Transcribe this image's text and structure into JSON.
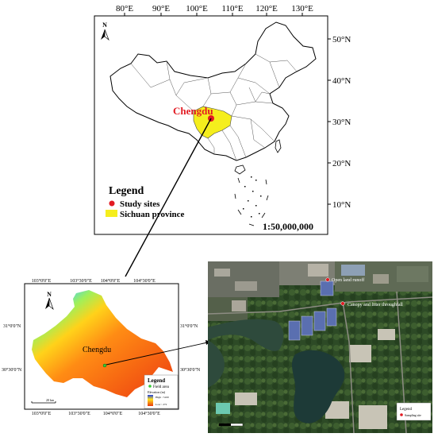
{
  "china_map": {
    "top_ticks": [
      "80°E",
      "90°E",
      "100°E",
      "110°E",
      "120°E",
      "130°E"
    ],
    "right_ticks": [
      "50°N",
      "40°N",
      "30°N",
      "20°N",
      "10°N"
    ],
    "north_label": "N",
    "city_label": "Chengdu",
    "legend": {
      "title": "Legend",
      "items": [
        {
          "label": "Study sites",
          "color": "#e21b23"
        },
        {
          "label": "Sichuan province",
          "color": "#f5ee1d"
        }
      ]
    },
    "scale": "1:50,000,000"
  },
  "chengdu_map": {
    "top_ticks": [
      "103°0'0\"E",
      "103°30'0\"E",
      "104°0'0\"E",
      "104°30'0\"E"
    ],
    "bottom_ticks": [
      "103°0'0\"E",
      "103°30'0\"E",
      "104°0'0\"E",
      "104°30'0\"E"
    ],
    "left_ticks": [
      "31°0'0\"N",
      "30°30'0\"N"
    ],
    "right_ticks": [
      "31°0'0\"N",
      "30°30'0\"N"
    ],
    "north_label": "N",
    "city_label": "Chengdu",
    "scale_label": "20 km",
    "legend": {
      "title": "Legend",
      "field_area": "Field area",
      "elevation": "Elevation (m)",
      "high": "High : 5100",
      "low": "Low : 272"
    }
  },
  "satellite": {
    "labels": [
      "Open land runoff",
      "Canopy and litter throughfall"
    ],
    "legend_title": "Legend",
    "legend_item": "Sampling site"
  }
}
